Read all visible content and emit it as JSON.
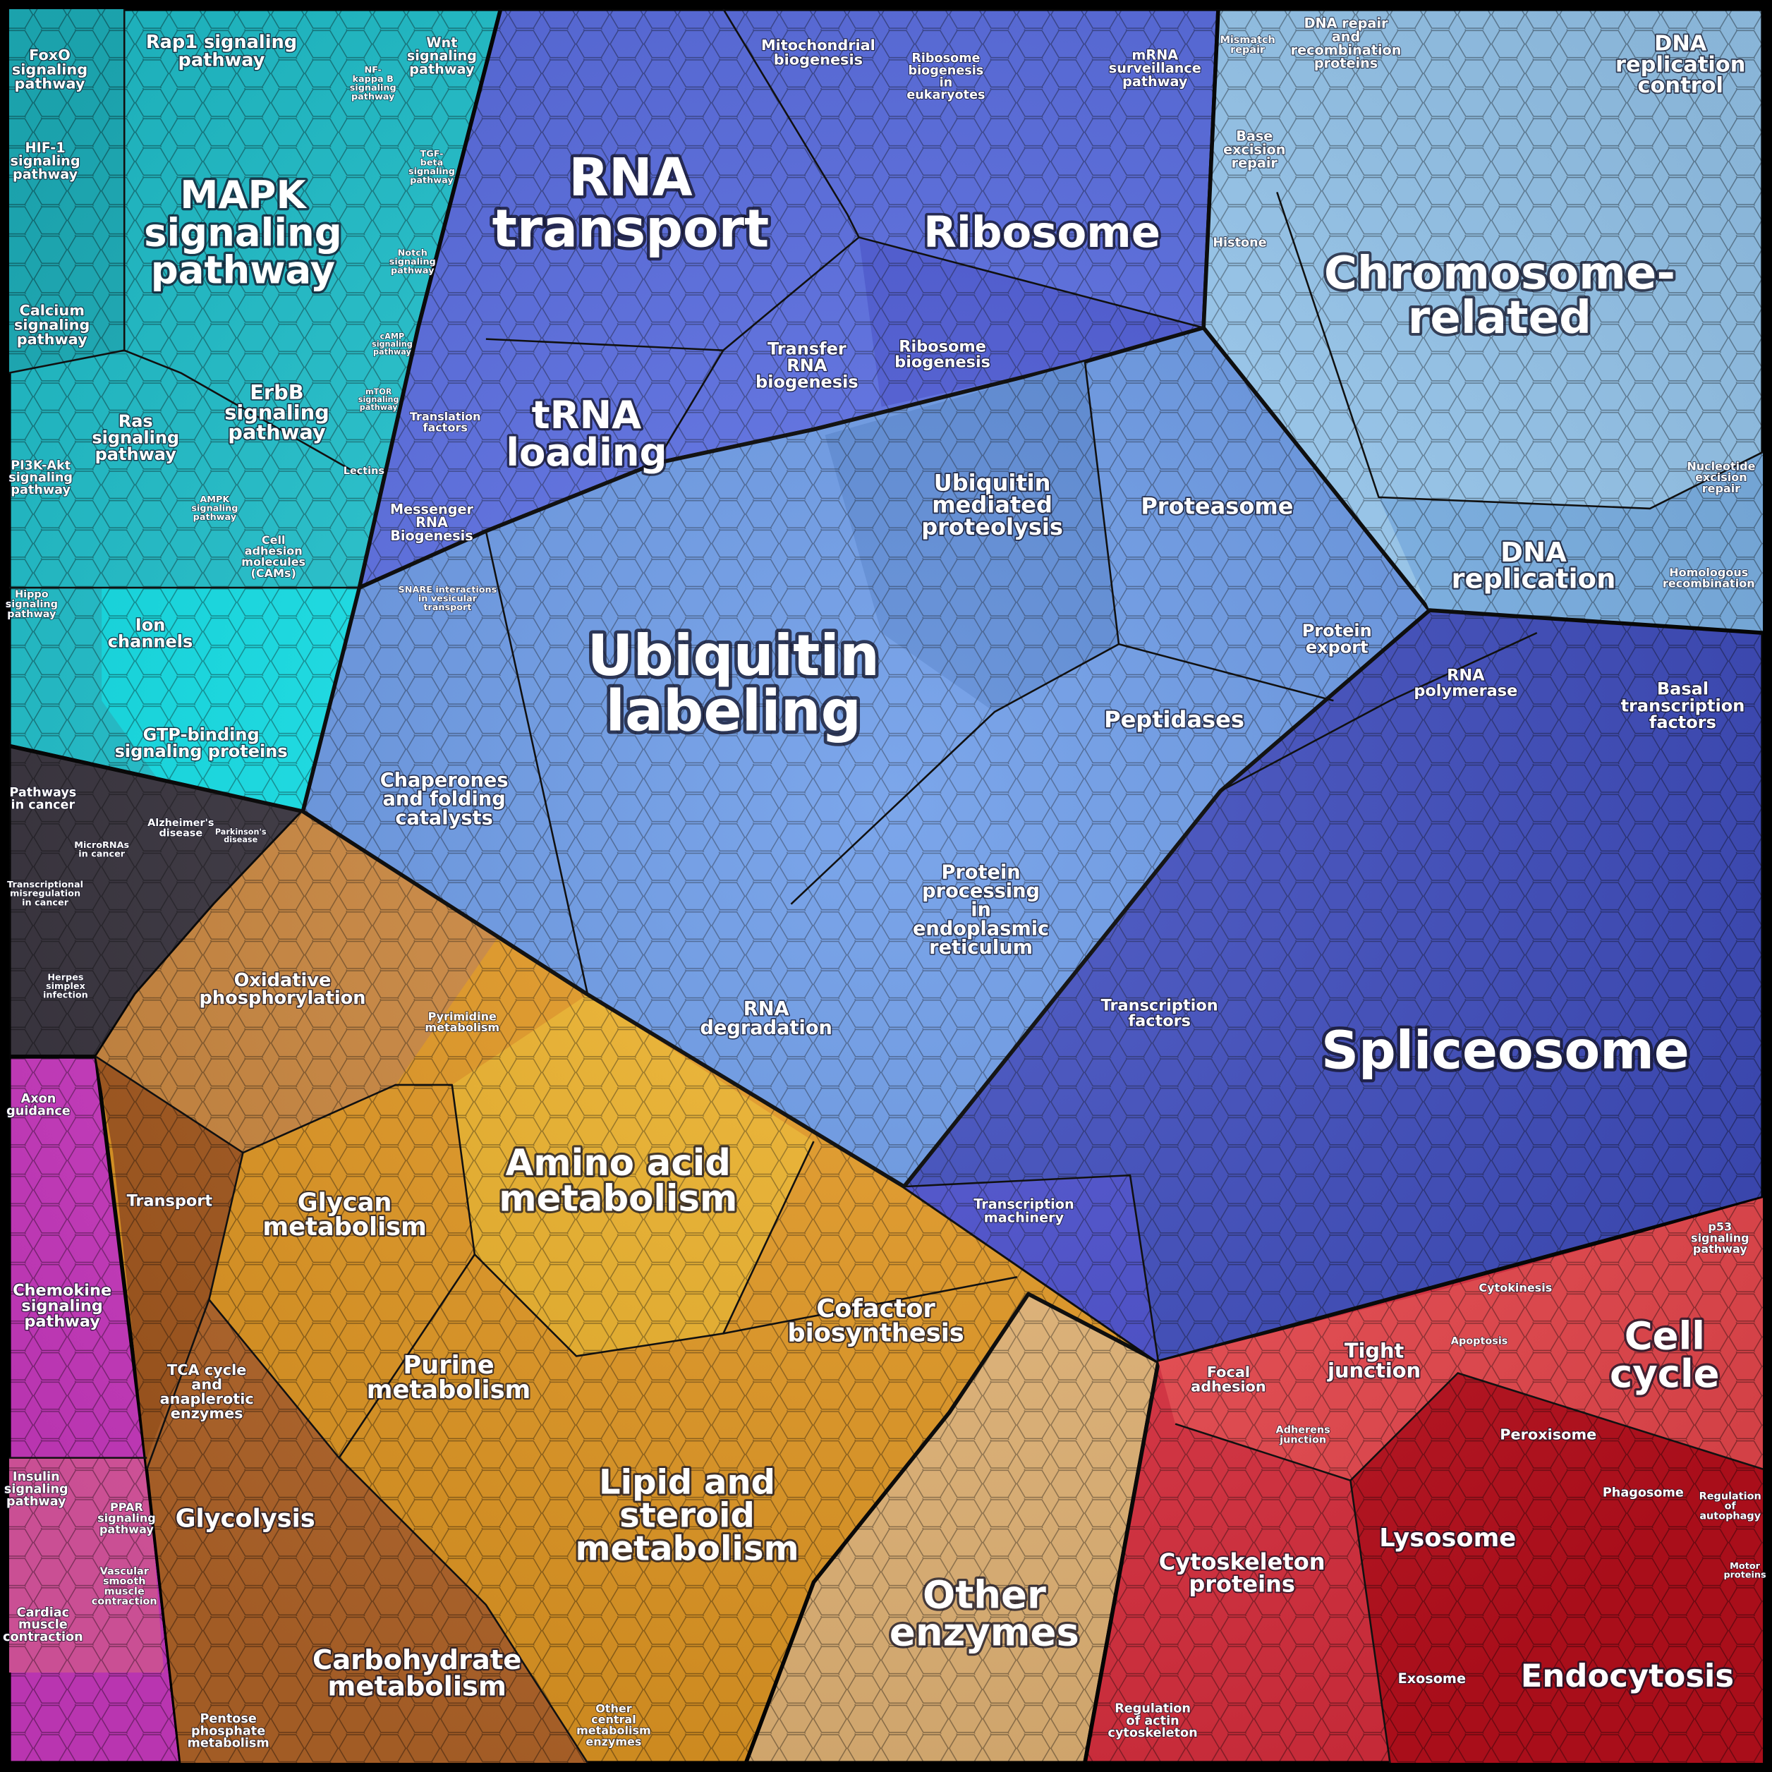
{
  "regions": [
    {
      "lines": [
        "MAPK",
        "signaling",
        "pathway"
      ]
    },
    {
      "lines": [
        "Rap1 signaling",
        "pathway"
      ]
    },
    {
      "lines": [
        "FoxO",
        "signaling",
        "pathway"
      ]
    },
    {
      "lines": [
        "Wnt",
        "signaling",
        "pathway"
      ]
    },
    {
      "lines": [
        "HIF-1",
        "signaling",
        "pathway"
      ]
    },
    {
      "lines": [
        "Calcium",
        "signaling",
        "pathway"
      ]
    },
    {
      "lines": [
        "ErbB",
        "signaling",
        "pathway"
      ]
    },
    {
      "lines": [
        "Ras",
        "signaling",
        "pathway"
      ]
    },
    {
      "lines": [
        "PI3K-Akt",
        "signaling",
        "pathway"
      ]
    },
    {
      "lines": [
        "Ion",
        "channels"
      ]
    },
    {
      "lines": [
        "GTP-binding",
        "signaling proteins"
      ]
    },
    {
      "lines": [
        "Cell",
        "adhesion",
        "molecules",
        "(CAMs)"
      ]
    },
    {
      "lines": [
        "Hippo",
        "signaling",
        "pathway"
      ]
    },
    {
      "lines": [
        "Lectins"
      ]
    },
    {
      "lines": [
        "Pathways",
        "in cancer"
      ]
    },
    {
      "lines": [
        "Alzheimer's",
        "disease"
      ]
    },
    {
      "lines": [
        "Transcriptional",
        "misregulation",
        "in cancer"
      ]
    },
    {
      "lines": [
        "MicroRNAs",
        "in cancer"
      ]
    },
    {
      "lines": [
        "Herpes",
        "simplex",
        "infection"
      ]
    },
    {
      "lines": [
        "Axon",
        "guidance"
      ]
    },
    {
      "lines": [
        "Chemokine",
        "signaling",
        "pathway"
      ]
    },
    {
      "lines": [
        "Insulin",
        "signaling",
        "pathway"
      ]
    },
    {
      "lines": [
        "PPAR",
        "signaling",
        "pathway"
      ]
    },
    {
      "lines": [
        "Cardiac",
        "muscle",
        "contraction"
      ]
    },
    {
      "lines": [
        "Vascular",
        "smooth",
        "muscle",
        "contraction"
      ]
    },
    {
      "lines": [
        "RNA",
        "transport"
      ]
    },
    {
      "lines": [
        "Mitochondrial",
        "biogenesis"
      ]
    },
    {
      "lines": [
        "Ribosome",
        "biogenesis",
        "in",
        "eukaryotes"
      ]
    },
    {
      "lines": [
        "mRNA",
        "surveillance",
        "pathway"
      ]
    },
    {
      "lines": [
        "Ribosome"
      ]
    },
    {
      "lines": [
        "Transfer",
        "RNA",
        "biogenesis"
      ]
    },
    {
      "lines": [
        "Ribosome",
        "biogenesis"
      ]
    },
    {
      "lines": [
        "tRNA",
        "loading"
      ]
    },
    {
      "lines": [
        "Translation",
        "factors"
      ]
    },
    {
      "lines": [
        "Messenger",
        "RNA",
        "Biogenesis"
      ]
    },
    {
      "lines": [
        "Ubiquitin",
        "labeling"
      ]
    },
    {
      "lines": [
        "Ubiquitin",
        "mediated",
        "proteolysis"
      ]
    },
    {
      "lines": [
        "Proteasome"
      ]
    },
    {
      "lines": [
        "Peptidases"
      ]
    },
    {
      "lines": [
        "Protein",
        "export"
      ]
    },
    {
      "lines": [
        "Chaperones",
        "and folding",
        "catalysts"
      ]
    },
    {
      "lines": [
        "Protein",
        "processing",
        "in",
        "endoplasmic",
        "reticulum"
      ]
    },
    {
      "lines": [
        "RNA",
        "degradation"
      ]
    },
    {
      "lines": [
        "SNARE interactions",
        "in vesicular",
        "transport"
      ]
    },
    {
      "lines": [
        "Chromosome-",
        "related"
      ]
    },
    {
      "lines": [
        "DNA",
        "replication",
        "control"
      ]
    },
    {
      "lines": [
        "DNA repair",
        "and",
        "recombination",
        "proteins"
      ]
    },
    {
      "lines": [
        "Base",
        "excision",
        "repair"
      ]
    },
    {
      "lines": [
        "Histone"
      ]
    },
    {
      "lines": [
        "DNA",
        "replication"
      ]
    },
    {
      "lines": [
        "Nucleotide",
        "excision",
        "repair"
      ]
    },
    {
      "lines": [
        "Homologous",
        "recombination"
      ]
    },
    {
      "lines": [
        "Mismatch",
        "repair"
      ]
    },
    {
      "lines": [
        "Spliceosome"
      ]
    },
    {
      "lines": [
        "RNA",
        "polymerase"
      ]
    },
    {
      "lines": [
        "Basal",
        "transcription",
        "factors"
      ]
    },
    {
      "lines": [
        "Transcription",
        "factors"
      ]
    },
    {
      "lines": [
        "Transcription",
        "machinery"
      ]
    },
    {
      "lines": [
        "Oxidative",
        "phosphorylation"
      ]
    },
    {
      "lines": [
        "Pyrimidine",
        "metabolism"
      ]
    },
    {
      "lines": [
        "Amino acid",
        "metabolism"
      ]
    },
    {
      "lines": [
        "Glycan",
        "metabolism"
      ]
    },
    {
      "lines": [
        "Transport"
      ]
    },
    {
      "lines": [
        "Purine",
        "metabolism"
      ]
    },
    {
      "lines": [
        "Cofactor",
        "biosynthesis"
      ]
    },
    {
      "lines": [
        "TCA cycle",
        "and",
        "anaplerotic",
        "enzymes"
      ]
    },
    {
      "lines": [
        "Glycolysis"
      ]
    },
    {
      "lines": [
        "Lipid and",
        "steroid",
        "metabolism"
      ]
    },
    {
      "lines": [
        "Carbohydrate",
        "metabolism"
      ]
    },
    {
      "lines": [
        "Pentose",
        "phosphate",
        "metabolism"
      ]
    },
    {
      "lines": [
        "Other",
        "central",
        "metabolism",
        "enzymes"
      ]
    },
    {
      "lines": [
        "Other",
        "enzymes"
      ]
    },
    {
      "lines": [
        "Cell",
        "cycle"
      ]
    },
    {
      "lines": [
        "p53",
        "signaling",
        "pathway"
      ]
    },
    {
      "lines": [
        "Tight",
        "junction"
      ]
    },
    {
      "lines": [
        "Focal",
        "adhesion"
      ]
    },
    {
      "lines": [
        "Cytokinesis"
      ]
    },
    {
      "lines": [
        "Apoptosis"
      ]
    },
    {
      "lines": [
        "Adherens",
        "junction"
      ]
    },
    {
      "lines": [
        "Peroxisome"
      ]
    },
    {
      "lines": [
        "Phagosome"
      ]
    },
    {
      "lines": [
        "Regulation",
        "of",
        "autophagy"
      ]
    },
    {
      "lines": [
        "Lysosome"
      ]
    },
    {
      "lines": [
        "Cytoskeleton",
        "proteins"
      ]
    },
    {
      "lines": [
        "Motor",
        "proteins"
      ]
    },
    {
      "lines": [
        "Endocytosis"
      ]
    },
    {
      "lines": [
        "Exosome"
      ]
    },
    {
      "lines": [
        "Regulation",
        "of actin",
        "cytoskeleton"
      ]
    },
    {
      "lines": [
        "Notch",
        "signaling",
        "pathway"
      ]
    },
    {
      "lines": [
        "TGF-",
        "beta",
        "signaling",
        "pathway"
      ]
    },
    {
      "lines": [
        "NF-",
        "kappa B",
        "signaling",
        "pathway"
      ]
    },
    {
      "lines": [
        "cAMP",
        "signaling",
        "pathway"
      ]
    },
    {
      "lines": [
        "mTOR",
        "signaling",
        "pathway"
      ]
    },
    {
      "lines": [
        "AMPK",
        "signaling",
        "pathway"
      ]
    },
    {
      "lines": [
        "Parkinson's",
        "disease"
      ]
    }
  ]
}
